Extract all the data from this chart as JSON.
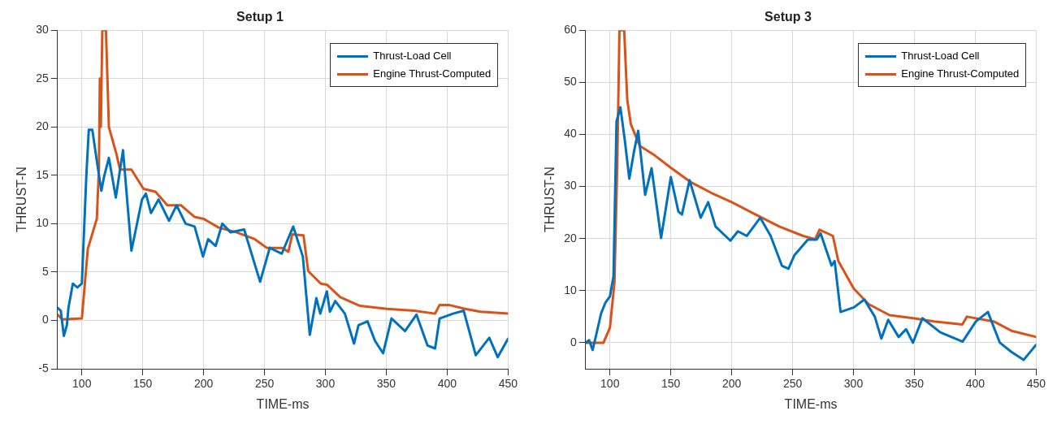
{
  "chart_data": [
    {
      "type": "line",
      "title": "Setup 1",
      "xlabel": "TIME-ms",
      "ylabel": "THRUST-N",
      "xlim": [
        80,
        450
      ],
      "xticks": [
        100,
        150,
        200,
        250,
        300,
        350,
        400,
        450
      ],
      "ylim": [
        -5,
        30
      ],
      "yticks": [
        -5,
        0,
        5,
        10,
        15,
        20,
        25,
        30
      ],
      "grid": true,
      "legend": "top right",
      "line_style": "solid",
      "marker": "none",
      "series": [
        {
          "name": "Thrust-Load Cell",
          "color": "#0072bd",
          "x": [
            80,
            82.7,
            85.2,
            87.7,
            89,
            92.6,
            96.3,
            100,
            103.7,
            105.7,
            108.6,
            112.3,
            116,
            118.5,
            122.2,
            127.9,
            133.8,
            140.7,
            149.4,
            152.6,
            156.8,
            163,
            171.6,
            177.8,
            185.2,
            192.6,
            199.5,
            203.7,
            209.9,
            215.3,
            222.2,
            233.3,
            246.4,
            254.3,
            264.2,
            273.6,
            281.5,
            287.2,
            292.6,
            295.8,
            301.2,
            303.7,
            308.1,
            316,
            323.5,
            327.2,
            334.6,
            340.7,
            347.4,
            354.3,
            365.4,
            374.8,
            383.9,
            390.1,
            393.8,
            404.9,
            413.6,
            423.5,
            434.6,
            441.5,
            450
          ],
          "values": [
            1.3,
            1.0,
            -1.6,
            -0.5,
            1.3,
            3.8,
            3.4,
            3.8,
            15,
            19.7,
            19.7,
            16.5,
            13.4,
            15,
            16.8,
            12.7,
            17.6,
            7.2,
            12.5,
            13.1,
            11.1,
            12.5,
            10.3,
            11.9,
            10,
            9.7,
            6.6,
            8.4,
            7.7,
            10,
            9.1,
            9.4,
            4,
            7.5,
            6.9,
            9.7,
            6.6,
            -1.5,
            2.3,
            0.7,
            3,
            0.9,
            2,
            0.7,
            -2.4,
            -0.5,
            -0.1,
            -2.1,
            -3.4,
            0.2,
            -1.1,
            0.6,
            -2.6,
            -2.9,
            0.2,
            0.7,
            1,
            -3.6,
            -1.8,
            -3.8,
            -1.9
          ]
        },
        {
          "name": "Engine Thrust-Computed",
          "color": "#d95319",
          "x": [
            80,
            84,
            100,
            104.9,
            112.3,
            114,
            114.8,
            115.6,
            116.8,
            119.8,
            122.2,
            128.4,
            131.3,
            140.7,
            150.6,
            160.4,
            170.3,
            181.4,
            192.6,
            200,
            212.3,
            227.2,
            242,
            251.9,
            264.2,
            269.6,
            272.8,
            282,
            285.9,
            296.3,
            301.2,
            312.3,
            328.4,
            350.6,
            372.8,
            390.1,
            393.8,
            401.2,
            414.8,
            427.2,
            450
          ],
          "values": [
            0.6,
            0.1,
            0.2,
            7.4,
            10.5,
            15.6,
            25,
            20,
            30,
            30,
            20,
            17.2,
            15.6,
            15.6,
            13.6,
            13.3,
            11.9,
            11.9,
            10.7,
            10.5,
            9.6,
            9.1,
            8.4,
            7.5,
            7.5,
            7.1,
            8.9,
            8.8,
            5.1,
            3.8,
            3.7,
            2.4,
            1.5,
            1.2,
            1,
            0.7,
            1.6,
            1.6,
            1.2,
            0.9,
            0.7
          ]
        }
      ]
    },
    {
      "type": "line",
      "title": "Setup 3",
      "xlabel": "TIME-ms",
      "ylabel": "THRUST-N",
      "xlim": [
        80,
        450
      ],
      "xticks": [
        100,
        150,
        200,
        250,
        300,
        350,
        400,
        450
      ],
      "ylim": [
        -5,
        60
      ],
      "yticks": [
        0,
        10,
        20,
        30,
        40,
        50,
        60
      ],
      "grid": true,
      "legend": "top right",
      "line_style": "solid",
      "marker": "none",
      "series": [
        {
          "name": "Thrust-Load Cell",
          "color": "#0072bd",
          "x": [
            80,
            82.9,
            85.8,
            89.8,
            92.7,
            96.3,
            100,
            102.9,
            105.4,
            108.6,
            112.2,
            115.9,
            119.6,
            123.2,
            128.9,
            134.2,
            142,
            150,
            156.2,
            159.1,
            165.4,
            174.5,
            180.7,
            186.7,
            198.9,
            205.1,
            212.4,
            223.4,
            232,
            241.2,
            246.6,
            251.5,
            262.5,
            269.8,
            273,
            282,
            284.5,
            289.4,
            300.4,
            308.9,
            317.5,
            322.9,
            328.5,
            337.1,
            343.2,
            348.8,
            356.6,
            371.3,
            389.6,
            400.6,
            410.4,
            420.2,
            429.9,
            439.7,
            450
          ],
          "values": [
            0,
            0.5,
            -1.4,
            2.6,
            5.6,
            7.7,
            8.9,
            12.7,
            42.5,
            45.2,
            38.9,
            31.5,
            36.5,
            40.7,
            28.4,
            33.5,
            20.1,
            31.8,
            25.2,
            24.6,
            31.2,
            24,
            27,
            22.3,
            19.6,
            21.4,
            20.5,
            24,
            20.5,
            14.8,
            14.2,
            16.8,
            19.8,
            19.8,
            21,
            14.8,
            15.7,
            5.9,
            6.8,
            8.3,
            5,
            0.8,
            4.4,
            1.1,
            2.6,
            0,
            4.7,
            2,
            0.2,
            4.1,
            5.9,
            0,
            -1.8,
            -3.3,
            -0.4
          ]
        },
        {
          "name": "Engine Thrust-Computed",
          "color": "#d95319",
          "x": [
            80,
            94.7,
            100,
            103.7,
            106.1,
            107.8,
            111.7,
            114.2,
            117.1,
            124.4,
            136.6,
            150,
            165.9,
            183,
            200,
            219.6,
            239.1,
            258.7,
            268.5,
            272.1,
            283.1,
            287.5,
            300.2,
            312.5,
            329.6,
            349.1,
            366.2,
            389.4,
            393.1,
            415,
            429.7,
            450
          ],
          "values": [
            0,
            0,
            2.9,
            11.5,
            35.4,
            60,
            60,
            46.7,
            42,
            37.8,
            36,
            33.6,
            30.9,
            28.8,
            27,
            24.6,
            22.3,
            20.5,
            19.9,
            21.7,
            20.5,
            15.7,
            10.4,
            7.4,
            5.3,
            4.7,
            4.1,
            3.5,
            5,
            4.1,
            2.3,
            1.1
          ]
        }
      ]
    }
  ]
}
